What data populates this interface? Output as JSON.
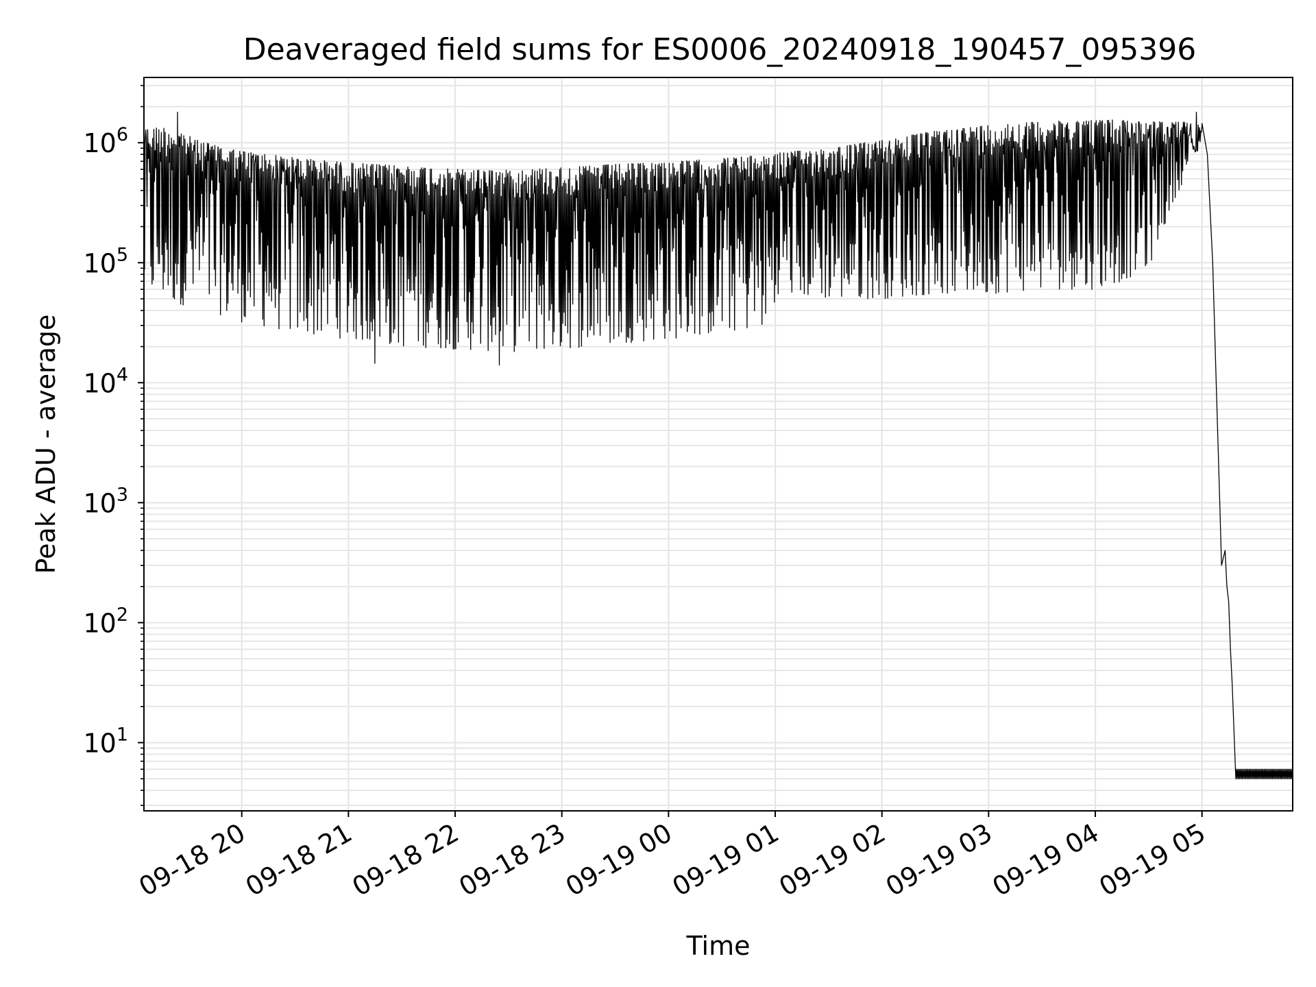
{
  "chart_data": {
    "type": "line",
    "title": "Deaveraged field sums for ES0006_20240918_190457_095396",
    "xlabel": "Time",
    "ylabel": "Peak ADU - average",
    "yscale": "log",
    "ylim": [
      2.7,
      3500000
    ],
    "xlim": [
      "2024-09-18 19:05",
      "2024-09-19 05:51"
    ],
    "grid": "on (major and minor y, major x)",
    "x_ticks": [
      {
        "value": "2024-09-18 20:00",
        "label": "09-18 20"
      },
      {
        "value": "2024-09-18 21:00",
        "label": "09-18 21"
      },
      {
        "value": "2024-09-18 22:00",
        "label": "09-18 22"
      },
      {
        "value": "2024-09-18 23:00",
        "label": "09-18 23"
      },
      {
        "value": "2024-09-19 00:00",
        "label": "09-19 00"
      },
      {
        "value": "2024-09-19 01:00",
        "label": "09-19 01"
      },
      {
        "value": "2024-09-19 02:00",
        "label": "09-19 02"
      },
      {
        "value": "2024-09-19 03:00",
        "label": "09-19 03"
      },
      {
        "value": "2024-09-19 04:00",
        "label": "09-19 04"
      },
      {
        "value": "2024-09-19 05:00",
        "label": "09-19 05"
      }
    ],
    "y_ticks": [
      {
        "value": 10,
        "base": "10",
        "exp": "1"
      },
      {
        "value": 100,
        "base": "10",
        "exp": "2"
      },
      {
        "value": 1000,
        "base": "10",
        "exp": "3"
      },
      {
        "value": 10000,
        "base": "10",
        "exp": "4"
      },
      {
        "value": 100000,
        "base": "10",
        "exp": "5"
      },
      {
        "value": 1000000,
        "base": "10",
        "exp": "6"
      }
    ],
    "series": [
      {
        "color": "#000000",
        "envelope": [
          {
            "t": "2024-09-18 19:05",
            "high": 1300000,
            "low": 55000
          },
          {
            "t": "2024-09-18 19:15",
            "high": 1350000,
            "low": 50000
          },
          {
            "t": "2024-09-18 19:25",
            "high": 1250000,
            "low": 45000
          },
          {
            "t": "2024-09-18 19:35",
            "high": 1050000,
            "low": 42000
          },
          {
            "t": "2024-09-18 19:45",
            "high": 950000,
            "low": 38000
          },
          {
            "t": "2024-09-18 20:00",
            "high": 850000,
            "low": 32000
          },
          {
            "t": "2024-09-18 20:30",
            "high": 750000,
            "low": 26000
          },
          {
            "t": "2024-09-18 21:00",
            "high": 680000,
            "low": 23000
          },
          {
            "t": "2024-09-18 21:30",
            "high": 640000,
            "low": 20000
          },
          {
            "t": "2024-09-18 22:00",
            "high": 600000,
            "low": 19000
          },
          {
            "t": "2024-09-18 22:30",
            "high": 590000,
            "low": 18000
          },
          {
            "t": "2024-09-18 23:00",
            "high": 620000,
            "low": 19000
          },
          {
            "t": "2024-09-18 23:30",
            "high": 660000,
            "low": 21000
          },
          {
            "t": "2024-09-19 00:00",
            "high": 690000,
            "low": 23000
          },
          {
            "t": "2024-09-19 00:30",
            "high": 740000,
            "low": 26000
          },
          {
            "t": "2024-09-19 01:00",
            "high": 800000,
            "low": 30000
          },
          {
            "t": "2024-09-19 01:01",
            "high": 820000,
            "low": 55000
          },
          {
            "t": "2024-09-19 01:30",
            "high": 900000,
            "low": 50000
          },
          {
            "t": "2024-09-19 02:00",
            "high": 1050000,
            "low": 50000
          },
          {
            "t": "2024-09-19 02:30",
            "high": 1250000,
            "low": 55000
          },
          {
            "t": "2024-09-19 03:00",
            "high": 1400000,
            "low": 55000
          },
          {
            "t": "2024-09-19 03:30",
            "high": 1500000,
            "low": 60000
          },
          {
            "t": "2024-09-19 04:00",
            "high": 1550000,
            "low": 60000
          },
          {
            "t": "2024-09-19 04:15",
            "high": 1550000,
            "low": 70000
          },
          {
            "t": "2024-09-19 04:30",
            "high": 1500000,
            "low": 90000
          },
          {
            "t": "2024-09-19 04:45",
            "high": 1500000,
            "low": 350000
          },
          {
            "t": "2024-09-19 05:00",
            "high": 1450000,
            "low": 1000000
          }
        ],
        "spikes": [
          {
            "t": "2024-09-18 19:24",
            "value": 1800000
          },
          {
            "t": "2024-09-18 22:25",
            "value": 14000
          },
          {
            "t": "2024-09-18 21:15",
            "value": 14500
          },
          {
            "t": "2024-09-19 04:57",
            "value": 1800000
          }
        ],
        "dropoff": [
          {
            "t": "2024-09-19 05:00",
            "value": 1450000
          },
          {
            "t": "2024-09-19 05:03",
            "value": 800000
          },
          {
            "t": "2024-09-19 05:06",
            "value": 100000
          },
          {
            "t": "2024-09-19 05:08",
            "value": 10000
          },
          {
            "t": "2024-09-19 05:10",
            "value": 1000
          },
          {
            "t": "2024-09-19 05:11",
            "value": 300
          },
          {
            "t": "2024-09-19 05:13",
            "value": 400
          },
          {
            "t": "2024-09-19 05:14",
            "value": 200
          },
          {
            "t": "2024-09-19 05:15",
            "value": 150
          },
          {
            "t": "2024-09-19 05:16",
            "value": 60
          },
          {
            "t": "2024-09-19 05:17",
            "value": 30
          },
          {
            "t": "2024-09-19 05:19",
            "value": 5
          }
        ],
        "tail": {
          "start": "2024-09-19 05:19",
          "end": "2024-09-19 05:51",
          "low": 5,
          "high": 6
        }
      }
    ]
  }
}
